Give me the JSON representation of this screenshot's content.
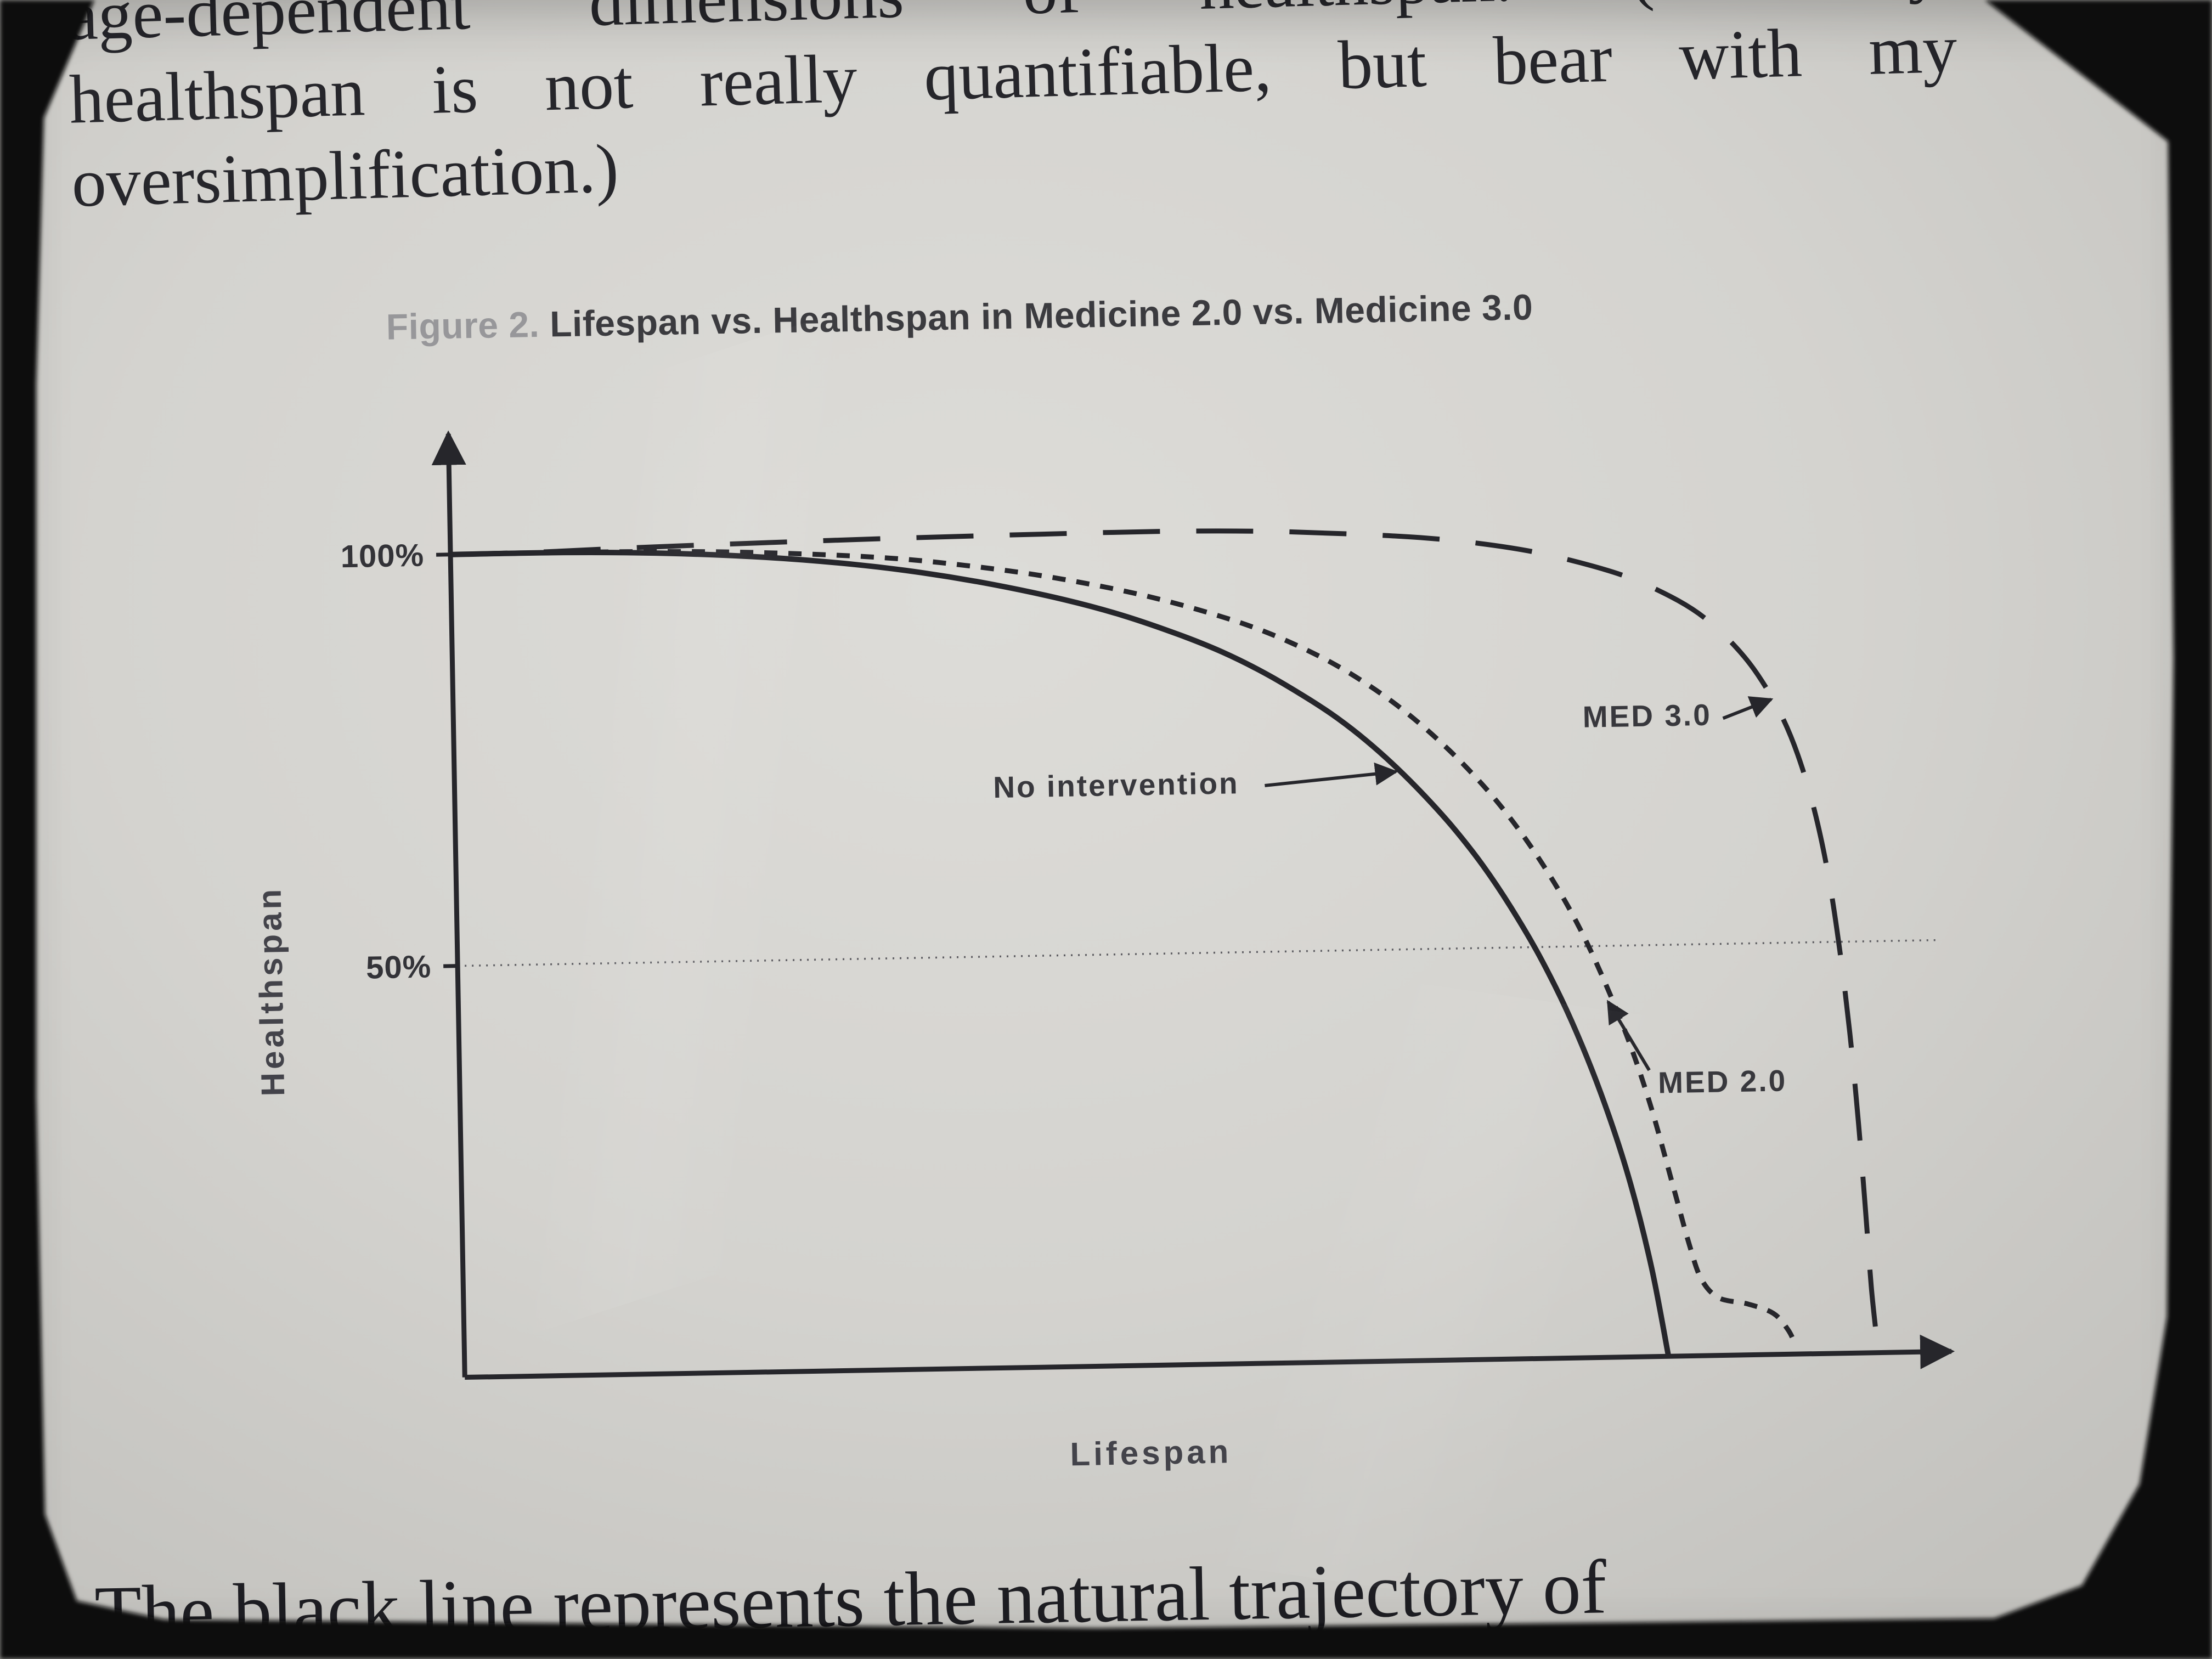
{
  "body_text": {
    "top_lines": [
      "age-dependent dimensions of healthspan. (Obviously,",
      "healthspan is not really quantifiable, but bear with my",
      "oversimplification.)"
    ],
    "bottom_line": "The black line represents the natural trajectory of"
  },
  "figure": {
    "caption_label": "Figure 2.",
    "caption_title": " Lifespan vs. Healthspan in Medicine 2.0 vs. Medicine 3.0"
  },
  "chart_data": {
    "type": "line",
    "title": "Lifespan vs. Healthspan in Medicine 2.0 vs. Medicine 3.0",
    "xlabel": "Lifespan",
    "ylabel": "Healthspan",
    "xlim": [
      0,
      100
    ],
    "ylim": [
      0,
      110
    ],
    "grid": "50% dotted horizontal reference line only",
    "line_color": "#26262b",
    "y_axis": {
      "label": "Healthspan",
      "ticks": [
        {
          "value": 100,
          "label": "100%"
        },
        {
          "value": 50,
          "label": "50%"
        }
      ]
    },
    "x_axis": {
      "label": "Lifespan",
      "ticks": []
    },
    "gridlines": [
      {
        "y": 50,
        "style": "dotted"
      }
    ],
    "series": [
      {
        "name": "No intervention",
        "style": "solid",
        "points": [
          [
            0,
            100
          ],
          [
            8,
            100
          ],
          [
            15,
            99.7
          ],
          [
            22,
            99
          ],
          [
            28,
            98
          ],
          [
            33,
            96.8
          ],
          [
            38,
            95.2
          ],
          [
            43,
            93.2
          ],
          [
            47,
            91.2
          ],
          [
            51,
            88.7
          ],
          [
            54,
            86.5
          ],
          [
            57,
            83.8
          ],
          [
            60,
            80.6
          ],
          [
            62,
            78.2
          ],
          [
            64,
            75.4
          ],
          [
            66,
            72.2
          ],
          [
            68,
            68.6
          ],
          [
            70,
            64.6
          ],
          [
            72,
            60
          ],
          [
            74,
            54.6
          ],
          [
            76,
            48.4
          ],
          [
            78,
            41
          ],
          [
            80,
            32
          ],
          [
            81.8,
            22
          ],
          [
            83.3,
            11
          ],
          [
            84.4,
            0
          ]
        ]
      },
      {
        "name": "MED 2.0",
        "style": "short-dash",
        "points": [
          [
            0,
            100
          ],
          [
            10,
            100
          ],
          [
            18,
            99.8
          ],
          [
            25,
            99.3
          ],
          [
            31,
            98.6
          ],
          [
            36,
            97.6
          ],
          [
            41,
            96.3
          ],
          [
            46,
            94.6
          ],
          [
            50,
            92.9
          ],
          [
            54,
            90.8
          ],
          [
            57,
            88.9
          ],
          [
            60,
            86.5
          ],
          [
            62.5,
            84.1
          ],
          [
            65,
            81.2
          ],
          [
            67,
            78.5
          ],
          [
            69,
            75.4
          ],
          [
            71,
            71.9
          ],
          [
            73,
            67.9
          ],
          [
            75,
            63.2
          ],
          [
            77,
            57.7
          ],
          [
            78.7,
            52.2
          ],
          [
            80.3,
            46
          ],
          [
            82,
            38.4
          ],
          [
            83.5,
            30.2
          ],
          [
            85,
            20.2
          ],
          [
            86,
            13.5
          ],
          [
            86.8,
            9.3
          ],
          [
            88,
            7
          ],
          [
            90,
            6.2
          ],
          [
            91.8,
            5
          ],
          [
            92.8,
            3
          ],
          [
            93.3,
            1.2
          ]
        ]
      },
      {
        "name": "MED 3.0",
        "style": "long-dash",
        "points": [
          [
            0,
            100
          ],
          [
            6,
            100.1
          ],
          [
            12,
            100.4
          ],
          [
            20,
            100.7
          ],
          [
            30,
            101
          ],
          [
            40,
            101.2
          ],
          [
            50,
            101.3
          ],
          [
            57,
            101.1
          ],
          [
            63,
            100.6
          ],
          [
            68,
            100
          ],
          [
            72,
            99.2
          ],
          [
            76,
            98
          ],
          [
            80,
            96.2
          ],
          [
            83,
            94.4
          ],
          [
            86,
            91.8
          ],
          [
            88,
            89.4
          ],
          [
            90,
            86
          ],
          [
            91.5,
            82.6
          ],
          [
            93,
            78
          ],
          [
            94.2,
            72.8
          ],
          [
            95.3,
            66
          ],
          [
            96.2,
            58
          ],
          [
            96.9,
            49
          ],
          [
            97.5,
            39
          ],
          [
            98,
            28
          ],
          [
            98.4,
            17
          ],
          [
            98.7,
            8
          ],
          [
            99,
            2
          ]
        ]
      }
    ],
    "annotations": [
      {
        "text": "No intervention",
        "text_x": 55,
        "text_y": 69.3,
        "anchor": "end",
        "arrow": [
          [
            56.8,
            70.2
          ],
          [
            66,
            71.6
          ]
        ]
      },
      {
        "text": "MED 3.0",
        "text_x": 88.2,
        "text_y": 76.6,
        "anchor": "end",
        "arrow": [
          [
            89,
            77.4
          ],
          [
            92.4,
            79.6
          ]
        ]
      },
      {
        "text": "MED 2.0",
        "text_x": 84,
        "text_y": 32,
        "anchor": "start",
        "arrow": [
          [
            83.4,
            34.8
          ],
          [
            80.6,
            43.2
          ]
        ]
      }
    ]
  },
  "colors": {
    "screen_background": "#d4d3cf",
    "bezel": "#070707",
    "body_text": "#26262b",
    "chart_line": "#26262b",
    "caption_label_gray": "#97979a",
    "caption_title": "#3b3b3f"
  }
}
